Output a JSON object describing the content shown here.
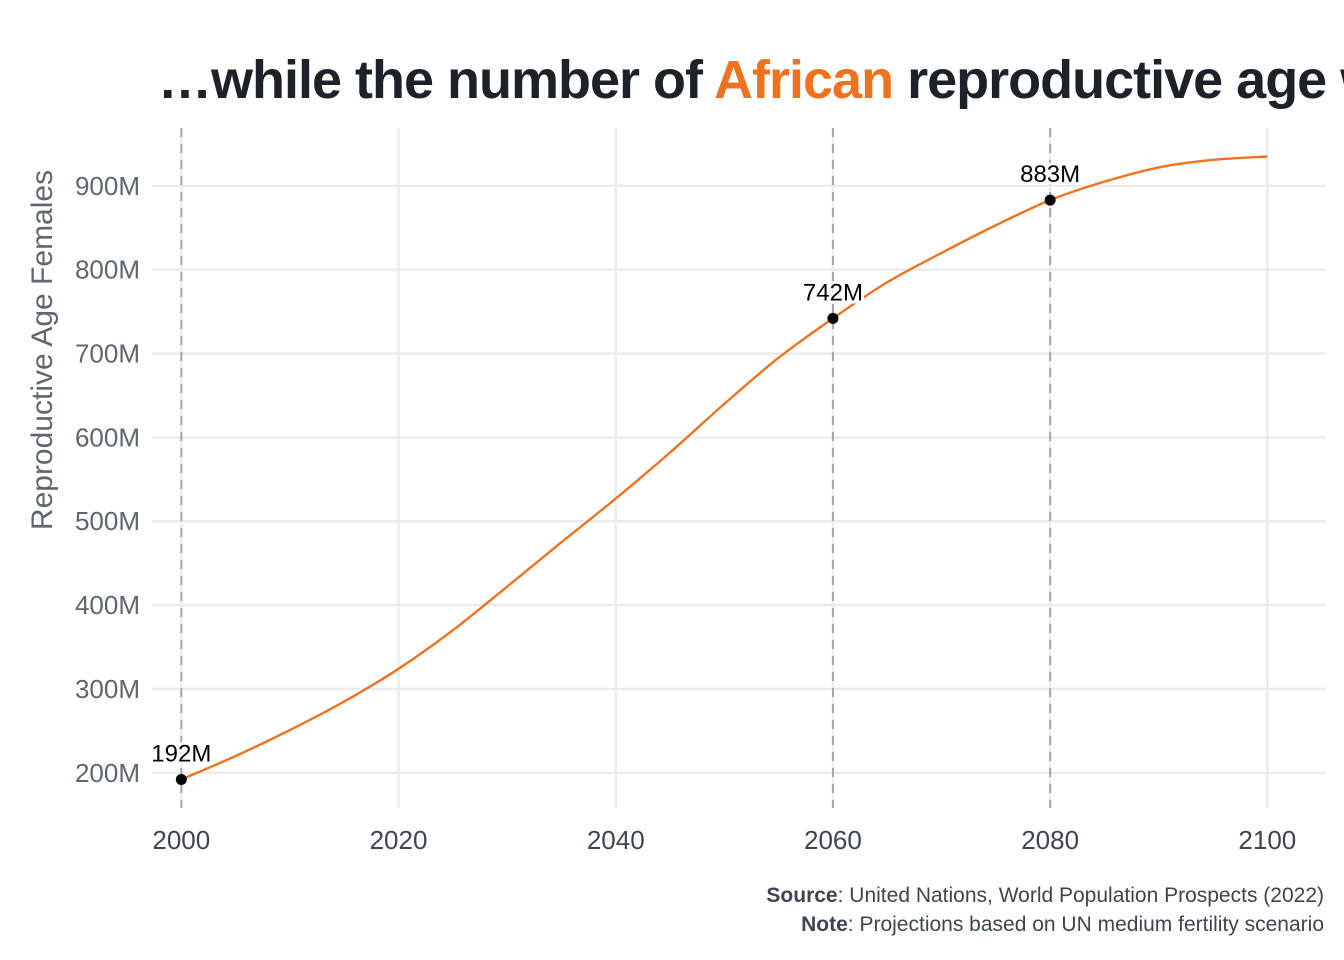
{
  "title": {
    "before": "…while the number of ",
    "highlight": "African",
    "after": " reproductive age women co"
  },
  "colors": {
    "accent": "#ee7321",
    "grid": "#ebebeb",
    "ref_line": "#a6a6a6",
    "axis_text": "#5f6670",
    "point": "#000000"
  },
  "chart_data": {
    "type": "line",
    "xlabel": "",
    "ylabel": "Reproductive Age Females",
    "xlim": [
      1997.3,
      2105.4
    ],
    "ylim": [
      158,
      969
    ],
    "x_ticks": [
      {
        "value": 2000,
        "label": "2000"
      },
      {
        "value": 2020,
        "label": "2020"
      },
      {
        "value": 2040,
        "label": "2040"
      },
      {
        "value": 2060,
        "label": "2060"
      },
      {
        "value": 2080,
        "label": "2080"
      },
      {
        "value": 2100,
        "label": "2100"
      }
    ],
    "y_ticks": [
      {
        "value": 200,
        "label": "200M"
      },
      {
        "value": 300,
        "label": "300M"
      },
      {
        "value": 400,
        "label": "400M"
      },
      {
        "value": 500,
        "label": "500M"
      },
      {
        "value": 600,
        "label": "600M"
      },
      {
        "value": 700,
        "label": "700M"
      },
      {
        "value": 800,
        "label": "800M"
      },
      {
        "value": 900,
        "label": "900M"
      }
    ],
    "reference_lines_x": [
      2000,
      2060,
      2080
    ],
    "series": [
      {
        "unit": "millions",
        "x": [
          2000,
          2005,
          2010,
          2015,
          2020,
          2025,
          2030,
          2035,
          2040,
          2045,
          2050,
          2055,
          2060,
          2065,
          2070,
          2075,
          2080,
          2085,
          2090,
          2095,
          2100
        ],
        "y": [
          192,
          220,
          251,
          285,
          324,
          370,
          422,
          475,
          527,
          582,
          640,
          695,
          742,
          785,
          820,
          853,
          883,
          905,
          922,
          931,
          935
        ]
      }
    ],
    "annotations": [
      {
        "x": 2000,
        "y": 192,
        "label": "192M"
      },
      {
        "x": 2060,
        "y": 742,
        "label": "742M"
      },
      {
        "x": 2080,
        "y": 883,
        "label": "883M"
      }
    ],
    "grid": true,
    "legend": "none"
  },
  "caption": {
    "source_label": "Source",
    "source_text": ": United Nations, World Population Prospects (2022)",
    "note_label": "Note",
    "note_text": ": Projections based on UN medium fertility scenario"
  }
}
